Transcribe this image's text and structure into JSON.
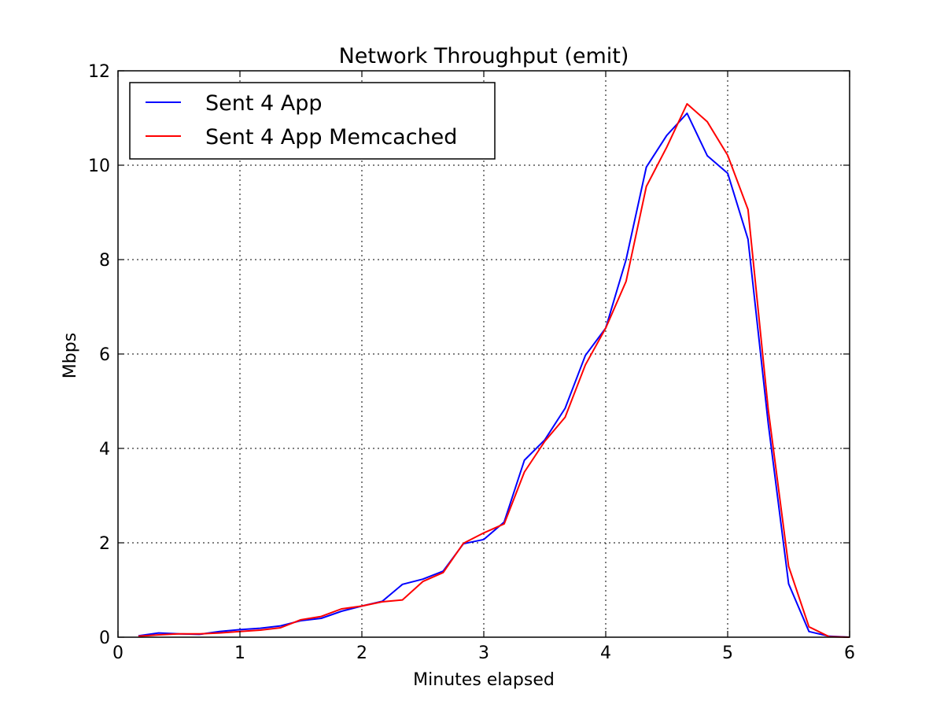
{
  "chart_data": {
    "type": "line",
    "title": "Network Throughput (emit)",
    "xlabel": "Minutes elapsed",
    "ylabel": "Mbps",
    "xlim": [
      0,
      6
    ],
    "ylim": [
      0,
      12
    ],
    "xticks": [
      0,
      1,
      2,
      3,
      4,
      5,
      6
    ],
    "yticks": [
      0,
      2,
      4,
      6,
      8,
      10,
      12
    ],
    "grid": true,
    "legend_position": "upper-left",
    "series": [
      {
        "name": "Sent 4 App",
        "color": "#0000ff",
        "x": [
          0.167,
          0.333,
          0.5,
          0.667,
          0.833,
          1.0,
          1.167,
          1.333,
          1.5,
          1.667,
          1.833,
          2.0,
          2.167,
          2.333,
          2.5,
          2.667,
          2.833,
          3.0,
          3.167,
          3.333,
          3.5,
          3.667,
          3.833,
          4.0,
          4.167,
          4.333,
          4.5,
          4.667,
          4.833,
          5.0,
          5.167,
          5.333,
          5.5,
          5.667,
          5.833,
          6.0
        ],
        "y": [
          0.03,
          0.09,
          0.07,
          0.06,
          0.12,
          0.16,
          0.19,
          0.24,
          0.35,
          0.4,
          0.55,
          0.66,
          0.76,
          1.12,
          1.23,
          1.4,
          1.98,
          2.07,
          2.44,
          3.75,
          4.18,
          4.85,
          5.97,
          6.55,
          8.0,
          9.96,
          10.63,
          11.1,
          10.2,
          9.83,
          8.43,
          4.52,
          1.13,
          0.12,
          0.02,
          0.0
        ]
      },
      {
        "name": "Sent 4 App Memcached",
        "color": "#ff0000",
        "x": [
          0.167,
          0.333,
          0.5,
          0.667,
          0.833,
          1.0,
          1.167,
          1.333,
          1.5,
          1.667,
          1.833,
          2.0,
          2.167,
          2.333,
          2.5,
          2.667,
          2.833,
          3.0,
          3.167,
          3.333,
          3.5,
          3.667,
          3.833,
          4.0,
          4.167,
          4.333,
          4.5,
          4.667,
          4.833,
          5.0,
          5.167,
          5.333,
          5.5,
          5.667,
          5.833,
          6.0
        ],
        "y": [
          0.02,
          0.05,
          0.07,
          0.07,
          0.09,
          0.12,
          0.15,
          0.2,
          0.37,
          0.44,
          0.6,
          0.66,
          0.75,
          0.79,
          1.18,
          1.37,
          1.99,
          2.21,
          2.4,
          3.5,
          4.15,
          4.66,
          5.77,
          6.55,
          7.54,
          9.55,
          10.38,
          11.3,
          10.92,
          10.21,
          9.06,
          4.82,
          1.5,
          0.22,
          0.01,
          0.0
        ]
      }
    ]
  }
}
